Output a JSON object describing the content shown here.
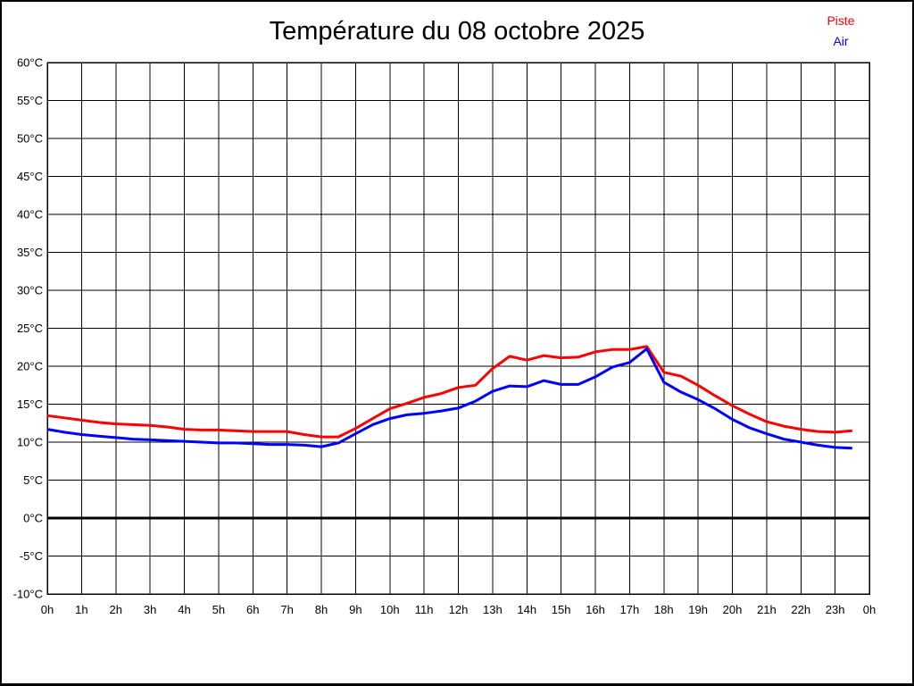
{
  "header": {
    "title": "Température du 08 octobre 2025"
  },
  "legend": [
    {
      "label": "Piste",
      "color": "#ff0000"
    },
    {
      "label": "Air",
      "color": "#0000ff"
    }
  ],
  "colors": {
    "background": "#ffffff",
    "grid": "#000000",
    "frame": "#000000",
    "zero_line": "#000000",
    "piste": "#ff0000",
    "air": "#0000ff",
    "text": "#000000"
  },
  "chart_data": {
    "type": "line",
    "title": "Température du 08 octobre 2025",
    "xlabel": "",
    "ylabel": "",
    "xlim": [
      0,
      24
    ],
    "ylim": [
      -10,
      60
    ],
    "y_step": 5,
    "grid": true,
    "legend_position": "top-right",
    "zero_line": {
      "value": 0,
      "width": 3
    },
    "x_tick_labels": [
      "0h",
      "1h",
      "2h",
      "3h",
      "4h",
      "5h",
      "6h",
      "7h",
      "8h",
      "9h",
      "10h",
      "11h",
      "12h",
      "13h",
      "14h",
      "15h",
      "16h",
      "17h",
      "18h",
      "19h",
      "20h",
      "21h",
      "22h",
      "23h",
      "0h"
    ],
    "y_tick_labels": [
      "60°C",
      "55°C",
      "50°C",
      "45°C",
      "40°C",
      "35°C",
      "30°C",
      "25°C",
      "20°C",
      "15°C",
      "10°C",
      "5°C",
      "0°C",
      "-5°C",
      "-10°C"
    ],
    "y_tick_values": [
      60,
      55,
      50,
      45,
      40,
      35,
      30,
      25,
      20,
      15,
      10,
      5,
      0,
      -5,
      -10
    ],
    "x_start_hours": 0,
    "x_step_hours": 0.5,
    "series": [
      {
        "name": "Piste",
        "color": "#ff0000",
        "values": [
          13.5,
          13.2,
          12.9,
          12.6,
          12.4,
          12.3,
          12.2,
          12.0,
          11.7,
          11.6,
          11.6,
          11.5,
          11.4,
          11.4,
          11.4,
          11.0,
          10.7,
          10.7,
          11.8,
          13.1,
          14.4,
          15.1,
          15.9,
          16.4,
          17.2,
          17.5,
          19.7,
          21.3,
          20.8,
          21.4,
          21.1,
          21.2,
          21.9,
          22.2,
          22.2,
          22.6,
          19.2,
          18.7,
          17.5,
          16.1,
          14.8,
          13.7,
          12.7,
          12.1,
          11.7,
          11.4,
          11.3,
          11.5
        ]
      },
      {
        "name": "Air",
        "color": "#0000ff",
        "values": [
          11.7,
          11.3,
          11.0,
          10.8,
          10.6,
          10.4,
          10.3,
          10.2,
          10.1,
          10.0,
          9.9,
          9.9,
          9.8,
          9.7,
          9.7,
          9.6,
          9.4,
          9.9,
          11.1,
          12.3,
          13.1,
          13.6,
          13.8,
          14.1,
          14.5,
          15.4,
          16.7,
          17.4,
          17.3,
          18.1,
          17.6,
          17.6,
          18.6,
          19.9,
          20.5,
          22.3,
          17.9,
          16.6,
          15.6,
          14.4,
          13.0,
          11.9,
          11.1,
          10.4,
          10.0,
          9.6,
          9.3,
          9.2
        ]
      }
    ]
  }
}
